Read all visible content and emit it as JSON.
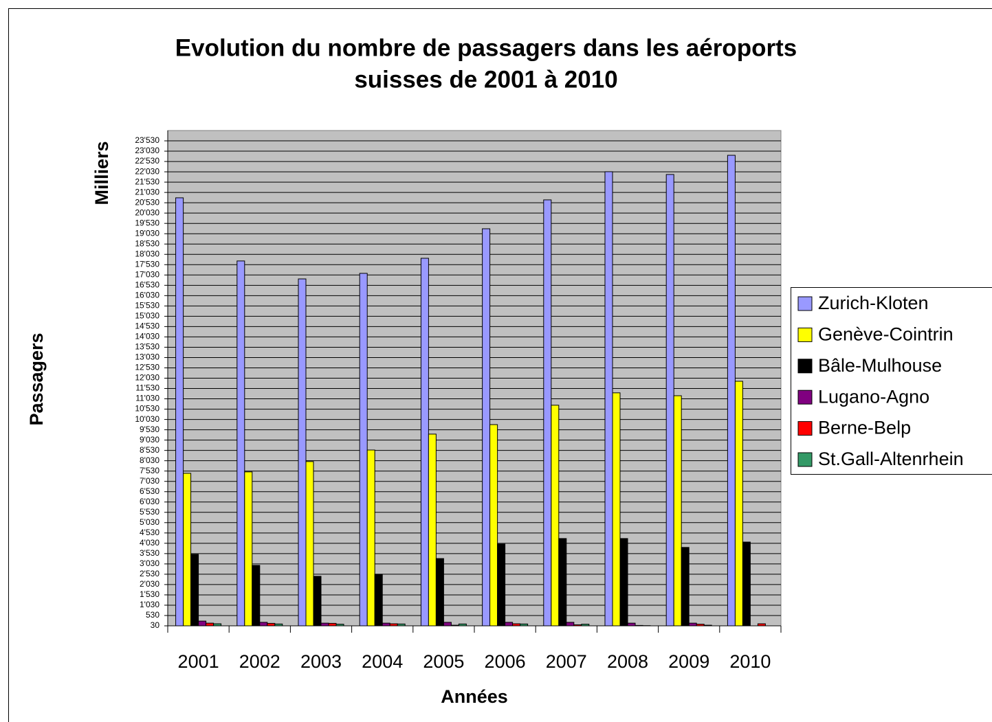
{
  "chart_data": {
    "type": "bar",
    "title": [
      "Evolution du nombre de passagers dans les aéroports",
      "suisses de 2001 à 2010"
    ],
    "y_label": "Milliers",
    "y_label_outer": "Passagers",
    "x_label": "Années",
    "categories": [
      "2001",
      "2002",
      "2003",
      "2004",
      "2005",
      "2006",
      "2007",
      "2008",
      "2009",
      "2010"
    ],
    "series": [
      {
        "name": "Zurich-Kloten",
        "color": "#9999ff",
        "values": [
          20770,
          17710,
          16840,
          17110,
          17840,
          19270,
          20670,
          22035,
          21900,
          22830
        ]
      },
      {
        "name": "Genève-Cointrin",
        "color": "#ffff00",
        "values": [
          7420,
          7490,
          7990,
          8550,
          9320,
          9780,
          10720,
          11320,
          11180,
          11880
        ]
      },
      {
        "name": "Bâle-Mulhouse",
        "color": "#000000",
        "values": [
          3490,
          2960,
          2430,
          2530,
          3290,
          3990,
          4260,
          4260,
          3830,
          4090
        ]
      },
      {
        "name": "Lugano-Agno",
        "color": "#800080",
        "values": [
          260,
          200,
          160,
          160,
          200,
          200,
          200,
          160,
          160,
          30
        ]
      },
      {
        "name": "Berne-Belp",
        "color": "#ff0000",
        "values": [
          160,
          150,
          150,
          130,
          60,
          130,
          80,
          50,
          110,
          130
        ]
      },
      {
        "name": "St.Gall-Altenrhein",
        "color": "#339966",
        "values": [
          130,
          120,
          110,
          120,
          120,
          120,
          110,
          40,
          60,
          30
        ]
      }
    ],
    "ylim": [
      30,
      24030
    ],
    "yticks": [
      {
        "value": 30,
        "label": "30"
      },
      {
        "value": 530,
        "label": "530"
      },
      {
        "value": 1030,
        "label": "1'030"
      },
      {
        "value": 1530,
        "label": "1'530"
      },
      {
        "value": 2030,
        "label": "2'030"
      },
      {
        "value": 2530,
        "label": "2'530"
      },
      {
        "value": 3030,
        "label": "3'030"
      },
      {
        "value": 3530,
        "label": "3'530"
      },
      {
        "value": 4030,
        "label": "4'030"
      },
      {
        "value": 4530,
        "label": "4'530"
      },
      {
        "value": 5030,
        "label": "5'030"
      },
      {
        "value": 5530,
        "label": "5'530"
      },
      {
        "value": 6030,
        "label": "6'030"
      },
      {
        "value": 6530,
        "label": "6'530"
      },
      {
        "value": 7030,
        "label": "7'030"
      },
      {
        "value": 7530,
        "label": "7'530"
      },
      {
        "value": 8030,
        "label": "8'030"
      },
      {
        "value": 8530,
        "label": "8'530"
      },
      {
        "value": 9030,
        "label": "9'030"
      },
      {
        "value": 9530,
        "label": "9'530"
      },
      {
        "value": 10030,
        "label": "10'030"
      },
      {
        "value": 10530,
        "label": "10'530"
      },
      {
        "value": 11030,
        "label": "11'030"
      },
      {
        "value": 11530,
        "label": "11'530"
      },
      {
        "value": 12030,
        "label": "12'030"
      },
      {
        "value": 12530,
        "label": "12'530"
      },
      {
        "value": 13030,
        "label": "13'030"
      },
      {
        "value": 13530,
        "label": "13'530"
      },
      {
        "value": 14030,
        "label": "14'030"
      },
      {
        "value": 14530,
        "label": "14'530"
      },
      {
        "value": 15030,
        "label": "15'030"
      },
      {
        "value": 15530,
        "label": "15'530"
      },
      {
        "value": 16030,
        "label": "16'030"
      },
      {
        "value": 16530,
        "label": "16'530"
      },
      {
        "value": 17030,
        "label": "17'030"
      },
      {
        "value": 17530,
        "label": "17'530"
      },
      {
        "value": 18030,
        "label": "18'030"
      },
      {
        "value": 18530,
        "label": "18'530"
      },
      {
        "value": 19030,
        "label": "19'030"
      },
      {
        "value": 19530,
        "label": "19'530"
      },
      {
        "value": 20030,
        "label": "20'030"
      },
      {
        "value": 20530,
        "label": "20'530"
      },
      {
        "value": 21030,
        "label": "21'030"
      },
      {
        "value": 21530,
        "label": "21'530"
      },
      {
        "value": 22030,
        "label": "22'030"
      },
      {
        "value": 22530,
        "label": "22'530"
      },
      {
        "value": 23030,
        "label": "23'030"
      },
      {
        "value": 23530,
        "label": "23'530"
      }
    ],
    "grid": true,
    "plot_background": "#c0c0c0",
    "legend": "right"
  }
}
